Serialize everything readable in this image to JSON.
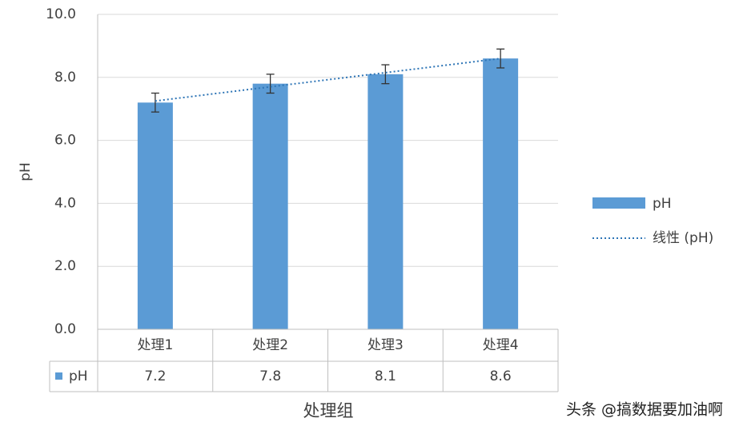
{
  "chart_data": {
    "type": "bar",
    "x_label": "处理组",
    "y_label": "pH",
    "categories": [
      "处理1",
      "处理2",
      "处理3",
      "处理4"
    ],
    "series": [
      {
        "name": "pH",
        "color": "#5b9bd5",
        "values": [
          7.2,
          7.8,
          8.1,
          8.6
        ],
        "errors": [
          0.3,
          0.3,
          0.3,
          0.3
        ]
      }
    ],
    "trendline": {
      "name": "线性 (pH)",
      "color": "#2e75b6",
      "kind": "linear"
    },
    "ylim": [
      0,
      10
    ],
    "yticks": [
      {
        "value": 0,
        "label": "0.0"
      },
      {
        "value": 2,
        "label": "2.0"
      },
      {
        "value": 4,
        "label": "4.0"
      },
      {
        "value": 6,
        "label": "6.0"
      },
      {
        "value": 8,
        "label": "8.0"
      },
      {
        "value": 10,
        "label": "10.0"
      }
    ],
    "grid": true,
    "legend": "right",
    "data_table": true,
    "watermark": "头条 @搞数据要加油啊"
  }
}
